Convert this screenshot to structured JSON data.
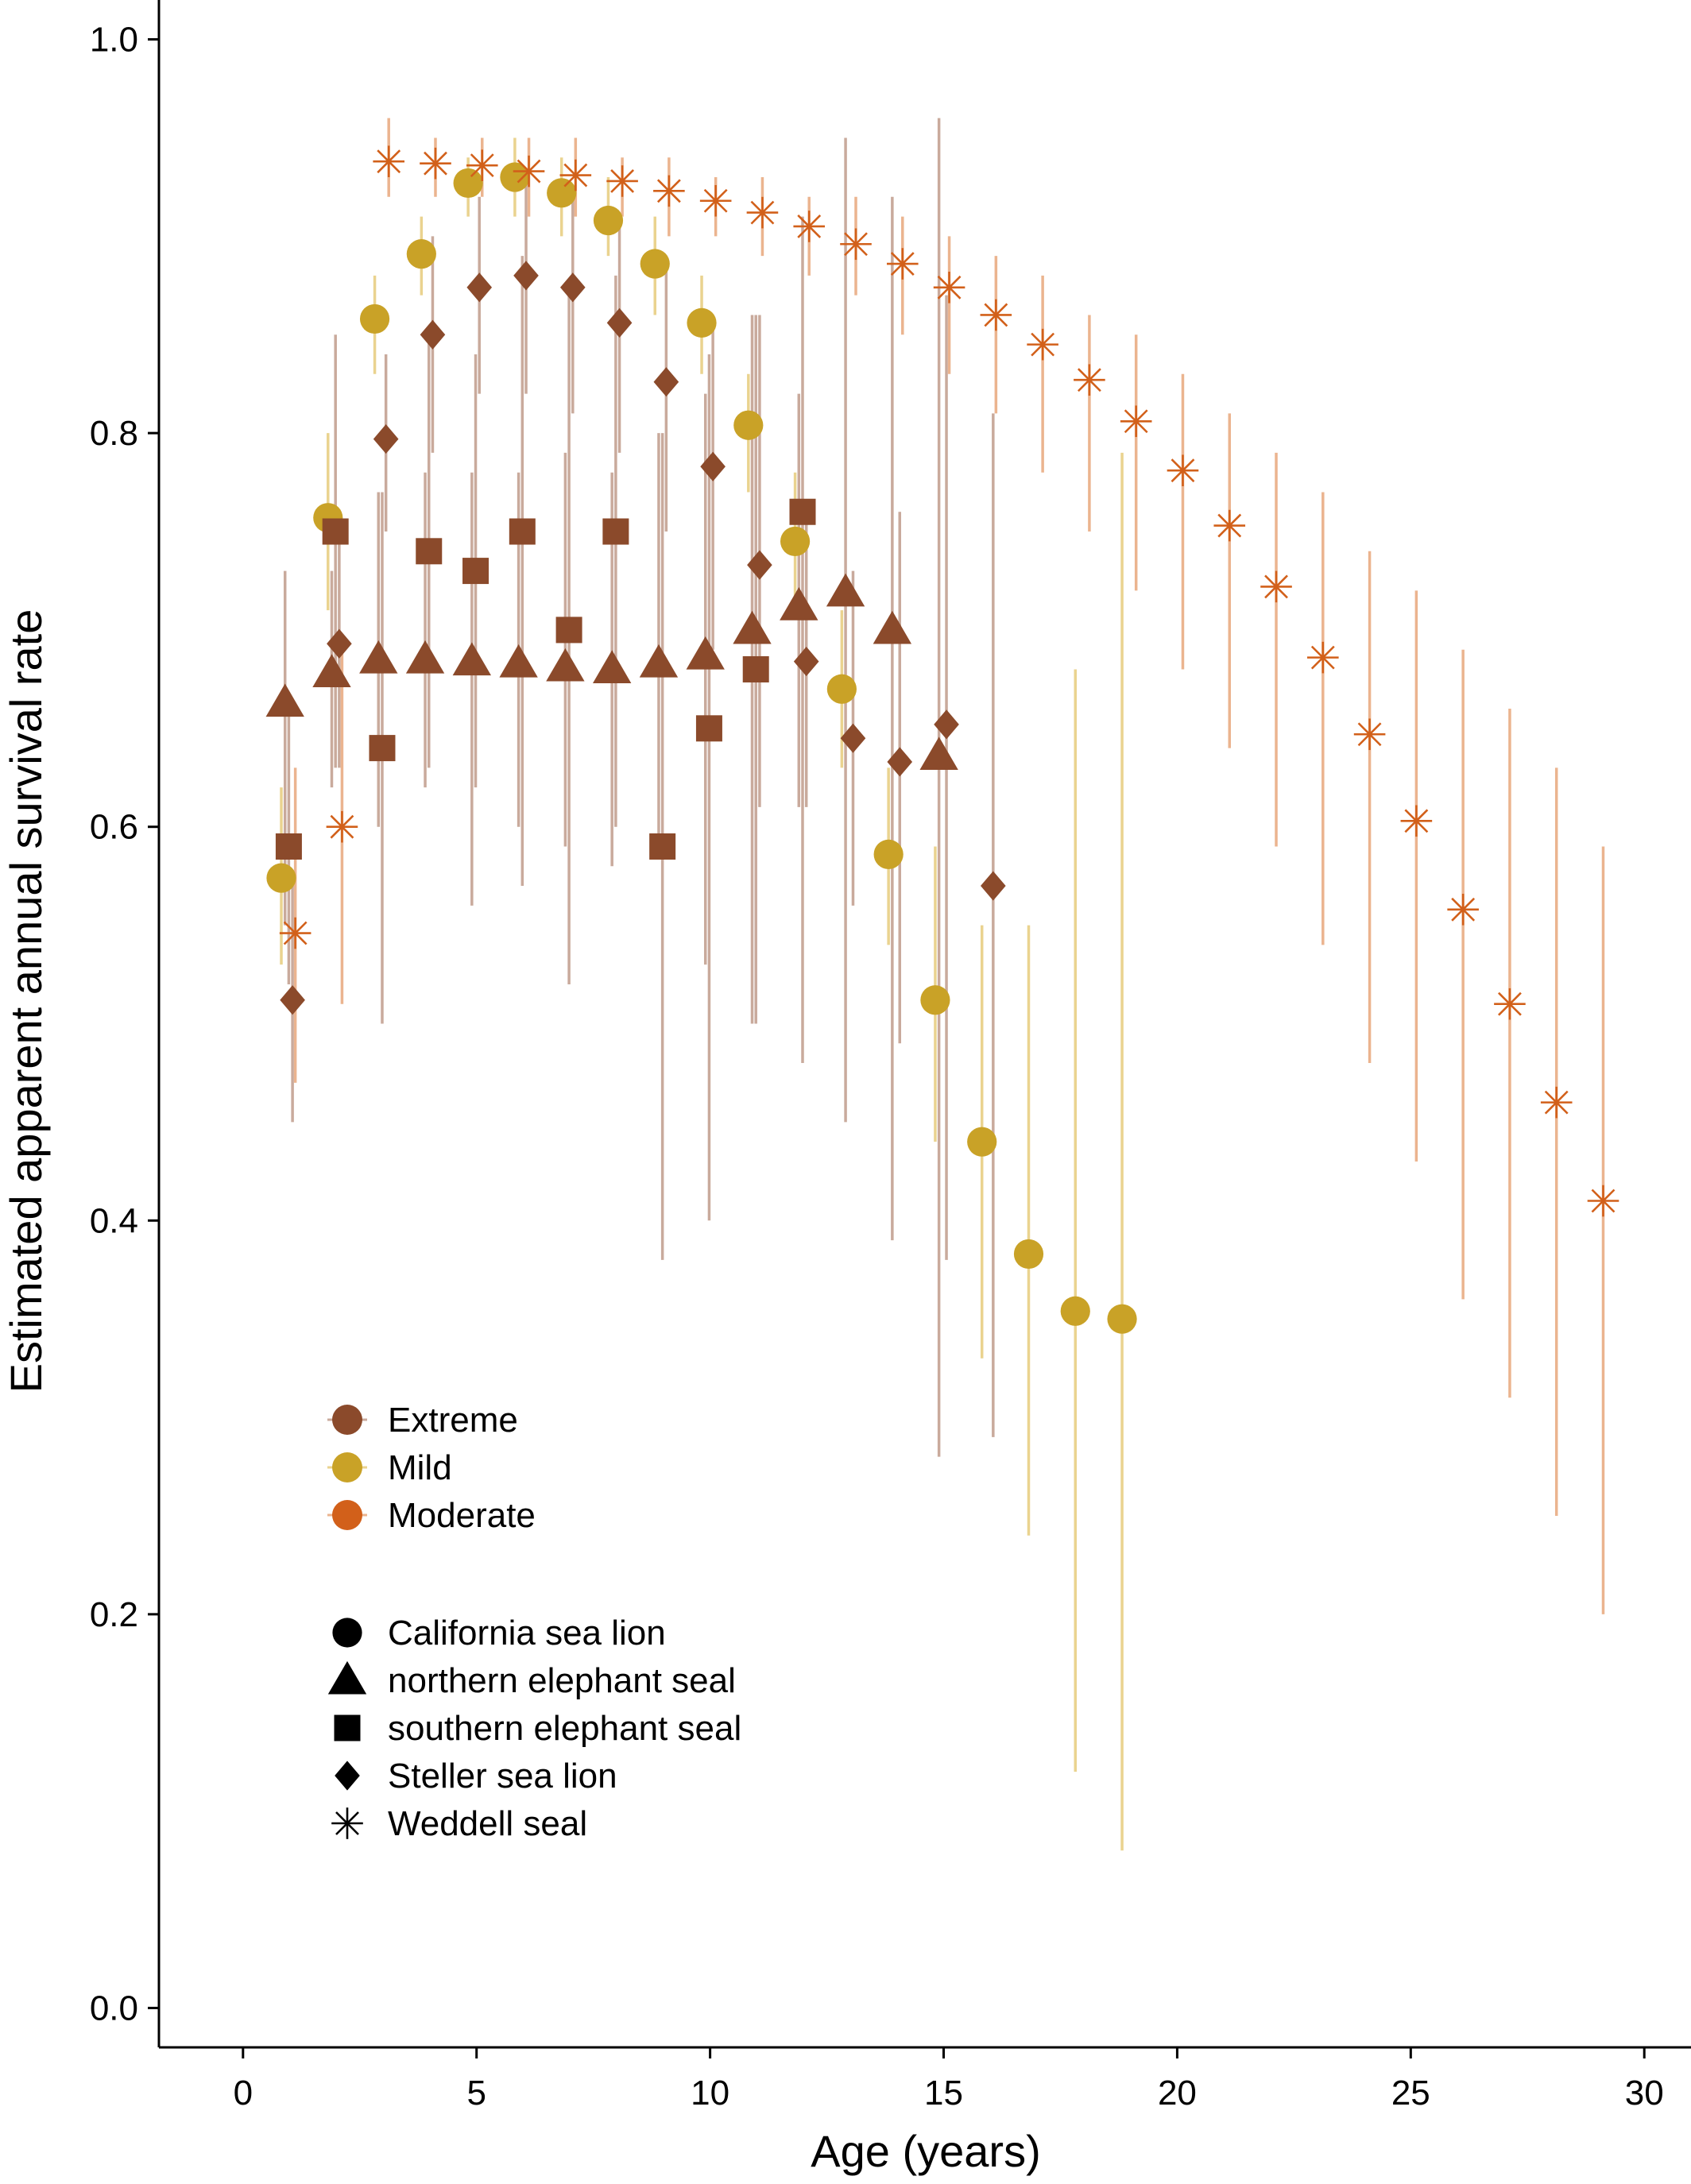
{
  "chart_data": {
    "type": "scatter",
    "xlabel": "Age (years)",
    "ylabel": "Estimated apparent annual survival rate",
    "xlim": [
      -1.8,
      31.0
    ],
    "ylim": [
      -0.02,
      1.02
    ],
    "xticks": [
      0,
      5,
      10,
      15,
      20,
      25,
      30
    ],
    "yticks": [
      0.0,
      0.2,
      0.4,
      0.6,
      0.8,
      1.0
    ],
    "ytick_labels": [
      "0.0",
      "0.2",
      "0.4",
      "0.6",
      "0.8",
      "1.0"
    ],
    "grid": false,
    "colors": {
      "Extreme": "#8b4a2b",
      "Mild": "#c9a227",
      "Moderate": "#d2601a"
    },
    "error_bar_colors": {
      "Extreme": "#c9aa9c",
      "Mild": "#ead38f",
      "Moderate": "#ebb48f"
    },
    "legend_color": {
      "title": "",
      "placement": "center-left",
      "items": [
        {
          "label": "Extreme",
          "color": "#8b4a2b"
        },
        {
          "label": "Mild",
          "color": "#c9a227"
        },
        {
          "label": "Moderate",
          "color": "#d2601a"
        }
      ]
    },
    "legend_shape": {
      "title": "",
      "placement": "center-left",
      "items": [
        {
          "label": "California sea lion",
          "shape": "circle"
        },
        {
          "label": "northern elephant seal",
          "shape": "triangle"
        },
        {
          "label": "southern elephant seal",
          "shape": "square"
        },
        {
          "label": "Steller sea lion",
          "shape": "diamond"
        },
        {
          "label": "Weddell seal",
          "shape": "asterisk"
        }
      ]
    },
    "series": [
      {
        "name": "California sea lion",
        "group": "Mild",
        "shape": "circle",
        "x": [
          1,
          2,
          3,
          4,
          5,
          6,
          7,
          8,
          9,
          10,
          11,
          12,
          13,
          14,
          15,
          16,
          17,
          18,
          19
        ],
        "y": [
          0.574,
          0.757,
          0.858,
          0.891,
          0.927,
          0.93,
          0.922,
          0.908,
          0.886,
          0.856,
          0.804,
          0.745,
          0.67,
          0.586,
          0.512,
          0.44,
          0.383,
          0.354,
          0.35
        ],
        "lower": [
          0.53,
          0.71,
          0.83,
          0.87,
          0.91,
          0.91,
          0.9,
          0.89,
          0.86,
          0.83,
          0.77,
          0.71,
          0.63,
          0.54,
          0.44,
          0.33,
          0.24,
          0.12,
          0.08
        ],
        "upper": [
          0.62,
          0.8,
          0.88,
          0.91,
          0.94,
          0.95,
          0.94,
          0.93,
          0.91,
          0.88,
          0.83,
          0.78,
          0.71,
          0.63,
          0.59,
          0.55,
          0.55,
          0.68,
          0.79
        ]
      },
      {
        "name": "northern elephant seal",
        "group": "Extreme",
        "shape": "triangle",
        "x": [
          1,
          2,
          3,
          4,
          5,
          6,
          7,
          8,
          9,
          10,
          11,
          12,
          13,
          14,
          15
        ],
        "y": [
          0.663,
          0.678,
          0.685,
          0.685,
          0.684,
          0.683,
          0.681,
          0.68,
          0.683,
          0.687,
          0.7,
          0.712,
          0.719,
          0.7,
          0.636
        ],
        "lower": [
          0.55,
          0.62,
          0.6,
          0.62,
          0.56,
          0.6,
          0.59,
          0.58,
          0.59,
          0.53,
          0.5,
          0.61,
          0.45,
          0.39,
          0.28
        ],
        "upper": [
          0.73,
          0.73,
          0.77,
          0.78,
          0.78,
          0.78,
          0.79,
          0.78,
          0.8,
          0.82,
          0.86,
          0.82,
          0.95,
          0.92,
          0.96
        ]
      },
      {
        "name": "southern elephant seal",
        "group": "Extreme",
        "shape": "square",
        "x": [
          1,
          2,
          3,
          4,
          5,
          6,
          7,
          8,
          9,
          10,
          11,
          12
        ],
        "y": [
          0.59,
          0.75,
          0.64,
          0.74,
          0.73,
          0.75,
          0.7,
          0.75,
          0.59,
          0.65,
          0.68,
          0.76
        ],
        "lower": [
          0.52,
          0.63,
          0.5,
          0.63,
          0.62,
          0.57,
          0.52,
          0.6,
          0.38,
          0.4,
          0.5,
          0.48
        ],
        "upper": [
          0.66,
          0.85,
          0.77,
          0.85,
          0.84,
          0.89,
          0.87,
          0.88,
          0.8,
          0.84,
          0.86,
          0.91
        ]
      },
      {
        "name": "Steller sea lion",
        "group": "Extreme",
        "shape": "diamond",
        "x": [
          1,
          2,
          3,
          4,
          5,
          6,
          7,
          8,
          9,
          10,
          11,
          12,
          13,
          14,
          15,
          16
        ],
        "y": [
          0.512,
          0.693,
          0.797,
          0.85,
          0.874,
          0.88,
          0.874,
          0.856,
          0.826,
          0.783,
          0.733,
          0.684,
          0.645,
          0.633,
          0.652,
          0.57
        ],
        "lower": [
          0.45,
          0.63,
          0.75,
          0.79,
          0.82,
          0.82,
          0.81,
          0.79,
          0.75,
          0.69,
          0.61,
          0.61,
          0.56,
          0.49,
          0.38,
          0.29
        ],
        "upper": [
          0.57,
          0.75,
          0.84,
          0.9,
          0.92,
          0.93,
          0.92,
          0.91,
          0.89,
          0.86,
          0.86,
          0.76,
          0.73,
          0.76,
          0.87,
          0.81
        ]
      },
      {
        "name": "Weddell seal",
        "group": "Moderate",
        "shape": "asterisk",
        "x": [
          1,
          2,
          3,
          4,
          5,
          6,
          7,
          8,
          9,
          10,
          11,
          12,
          13,
          14,
          15,
          16,
          17,
          18,
          19,
          20,
          21,
          22,
          23,
          24,
          25,
          26,
          27,
          28,
          29
        ],
        "y": [
          0.546,
          0.6,
          0.938,
          0.937,
          0.936,
          0.933,
          0.931,
          0.928,
          0.923,
          0.918,
          0.912,
          0.905,
          0.896,
          0.886,
          0.874,
          0.86,
          0.845,
          0.827,
          0.806,
          0.781,
          0.753,
          0.722,
          0.686,
          0.647,
          0.603,
          0.558,
          0.51,
          0.46,
          0.41
        ],
        "lower": [
          0.47,
          0.51,
          0.92,
          0.92,
          0.92,
          0.91,
          0.91,
          0.91,
          0.9,
          0.9,
          0.89,
          0.88,
          0.87,
          0.85,
          0.83,
          0.81,
          0.78,
          0.75,
          0.72,
          0.68,
          0.64,
          0.59,
          0.54,
          0.48,
          0.43,
          0.36,
          0.31,
          0.25,
          0.2
        ],
        "upper": [
          0.63,
          0.69,
          0.96,
          0.95,
          0.95,
          0.95,
          0.95,
          0.94,
          0.94,
          0.93,
          0.93,
          0.92,
          0.92,
          0.91,
          0.9,
          0.89,
          0.88,
          0.86,
          0.85,
          0.83,
          0.81,
          0.79,
          0.77,
          0.74,
          0.72,
          0.69,
          0.66,
          0.63,
          0.59
        ]
      }
    ]
  }
}
